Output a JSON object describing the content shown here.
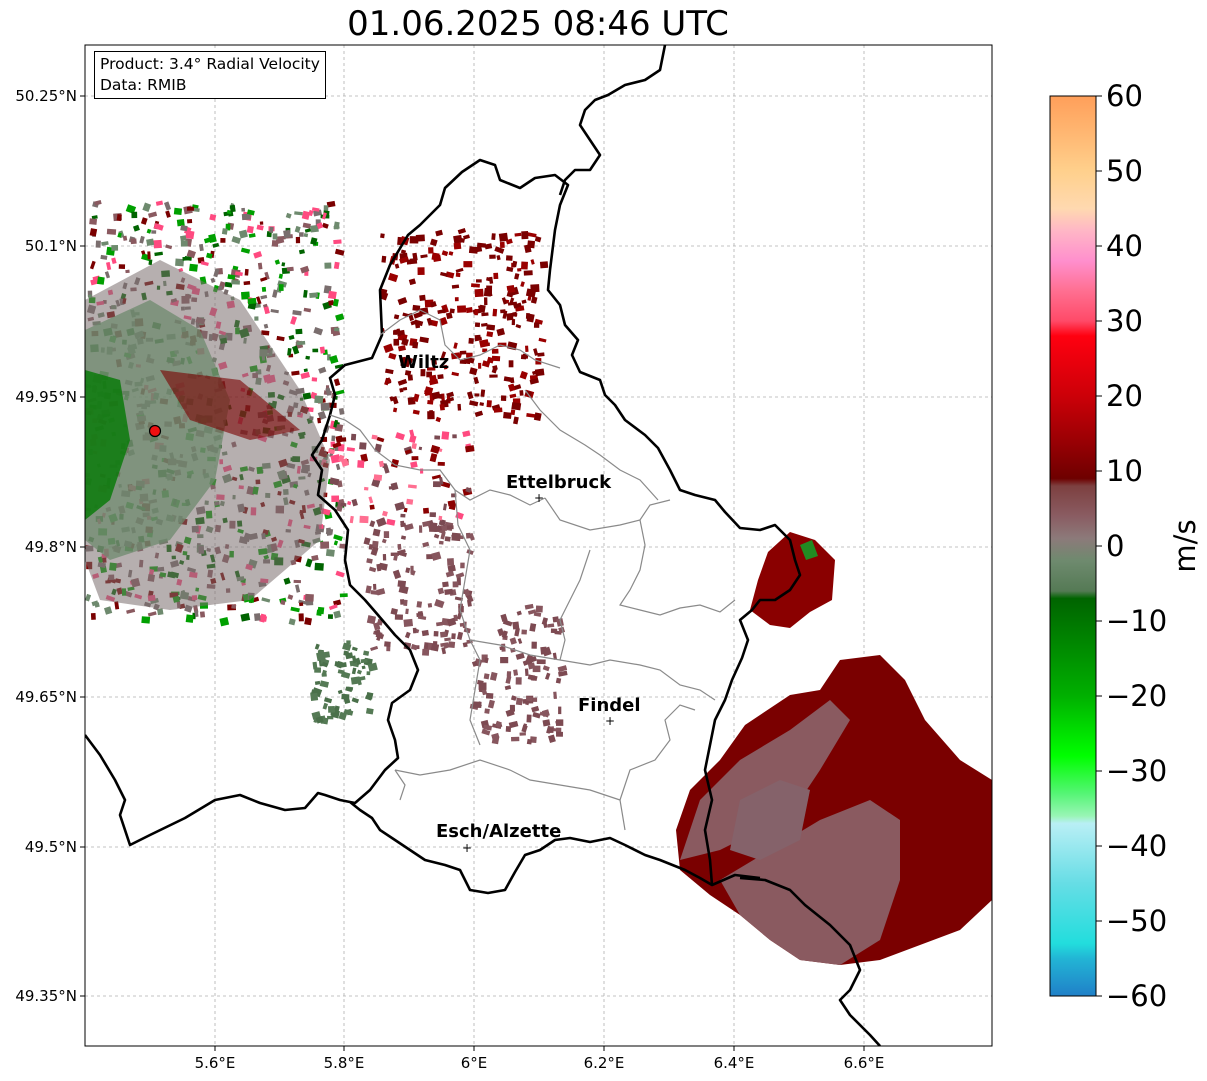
{
  "title": "01.06.2025 08:46 UTC",
  "info": {
    "product": "Product: 3.4° Radial Velocity",
    "data": "Data: RMIB"
  },
  "axes": {
    "lat_ticks": [
      "50.25°N",
      "50.1°N",
      "49.95°N",
      "49.8°N",
      "49.65°N",
      "49.5°N",
      "49.35°N"
    ],
    "lon_ticks": [
      "5.6°E",
      "5.8°E",
      "6°E",
      "6.2°E",
      "6.4°E",
      "6.6°E"
    ]
  },
  "colorbar": {
    "label": "m/s",
    "ticks": [
      "60",
      "50",
      "40",
      "30",
      "20",
      "10",
      "0",
      "−10",
      "−20",
      "−30",
      "−40",
      "−50",
      "−60"
    ],
    "stops": [
      {
        "v": 60,
        "c": "#ff9f5a"
      },
      {
        "v": 55,
        "c": "#ffb772"
      },
      {
        "v": 50,
        "c": "#ffd08c"
      },
      {
        "v": 45,
        "c": "#ffd9b0"
      },
      {
        "v": 42,
        "c": "#ffb6c6"
      },
      {
        "v": 38,
        "c": "#ff8fcd"
      },
      {
        "v": 34,
        "c": "#ff6f91"
      },
      {
        "v": 30,
        "c": "#ff4a68"
      },
      {
        "v": 28,
        "c": "#ff0010"
      },
      {
        "v": 20,
        "c": "#cc0008"
      },
      {
        "v": 14,
        "c": "#9a0004"
      },
      {
        "v": 9,
        "c": "#6e0000"
      },
      {
        "v": 8,
        "c": "#7d4040"
      },
      {
        "v": 4,
        "c": "#8a5c62"
      },
      {
        "v": 1,
        "c": "#8c7a7a"
      },
      {
        "v": -2,
        "c": "#6e8a6e"
      },
      {
        "v": -6,
        "c": "#557a55"
      },
      {
        "v": -7,
        "c": "#006400"
      },
      {
        "v": -20,
        "c": "#00b000"
      },
      {
        "v": -28,
        "c": "#00ff00"
      },
      {
        "v": -33,
        "c": "#55f575"
      },
      {
        "v": -36,
        "c": "#99f5b5"
      },
      {
        "v": -37,
        "c": "#b9eff5"
      },
      {
        "v": -45,
        "c": "#66dde5"
      },
      {
        "v": -53,
        "c": "#22dddd"
      },
      {
        "v": -55,
        "c": "#22b5d5"
      },
      {
        "v": -60,
        "c": "#2080c8"
      }
    ]
  },
  "cities": [
    {
      "name": "Wiltz"
    },
    {
      "name": "Ettelbruck"
    },
    {
      "name": "Findel"
    },
    {
      "name": "Esch/Alzette"
    }
  ],
  "colors": {
    "strong_approaching": "#7a0000",
    "weak_velocity": "#87565e",
    "negative": "#557a55",
    "radar_marker": "#ee1111"
  }
}
